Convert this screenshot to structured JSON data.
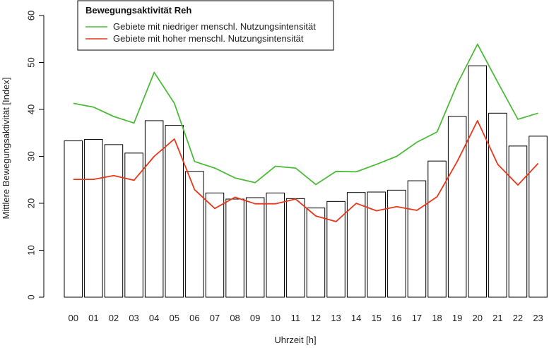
{
  "chart_data": {
    "type": "bar",
    "xlabel": "Uhrzeit [h]",
    "ylabel": "Mittlere Bewegungsaktivität [Index]",
    "ylim": [
      0,
      60
    ],
    "yticks": [
      0,
      10,
      20,
      30,
      40,
      50,
      60
    ],
    "grid": false,
    "legend_position": "top-left",
    "categories": [
      "00",
      "01",
      "02",
      "03",
      "04",
      "05",
      "06",
      "07",
      "08",
      "09",
      "10",
      "11",
      "12",
      "13",
      "14",
      "15",
      "16",
      "17",
      "18",
      "19",
      "20",
      "21",
      "22",
      "23"
    ],
    "values": [
      33.3,
      33.6,
      32.5,
      30.7,
      37.6,
      36.6,
      26.8,
      22.2,
      20.9,
      21.2,
      22.2,
      21.0,
      19.0,
      20.4,
      22.3,
      22.4,
      22.8,
      24.8,
      29.0,
      38.5,
      49.3,
      39.2,
      32.2,
      34.3
    ],
    "legend": {
      "title": "Bewegungsaktivität Reh"
    },
    "series": [
      {
        "name": "Gebiete mit niedriger menschl. Nutzungsintensität",
        "type": "line",
        "color": "#4dbb3a",
        "values": [
          41.3,
          40.5,
          38.5,
          37.1,
          47.9,
          41.3,
          28.9,
          27.5,
          25.4,
          24.4,
          27.9,
          27.5,
          24.0,
          26.8,
          26.7,
          28.3,
          30.0,
          33.0,
          35.2,
          45.4,
          53.9,
          45.8,
          37.9,
          39.2
        ]
      },
      {
        "name": "Gebiete mit hoher menschl. Nutzungsintensität",
        "type": "line",
        "color": "#e8371a",
        "values": [
          25.1,
          25.1,
          25.9,
          24.9,
          30.0,
          33.7,
          22.9,
          18.9,
          21.3,
          19.9,
          19.9,
          20.9,
          17.3,
          16.1,
          20.0,
          18.4,
          19.3,
          18.5,
          21.4,
          28.9,
          37.6,
          28.3,
          23.9,
          28.5
        ]
      }
    ]
  }
}
